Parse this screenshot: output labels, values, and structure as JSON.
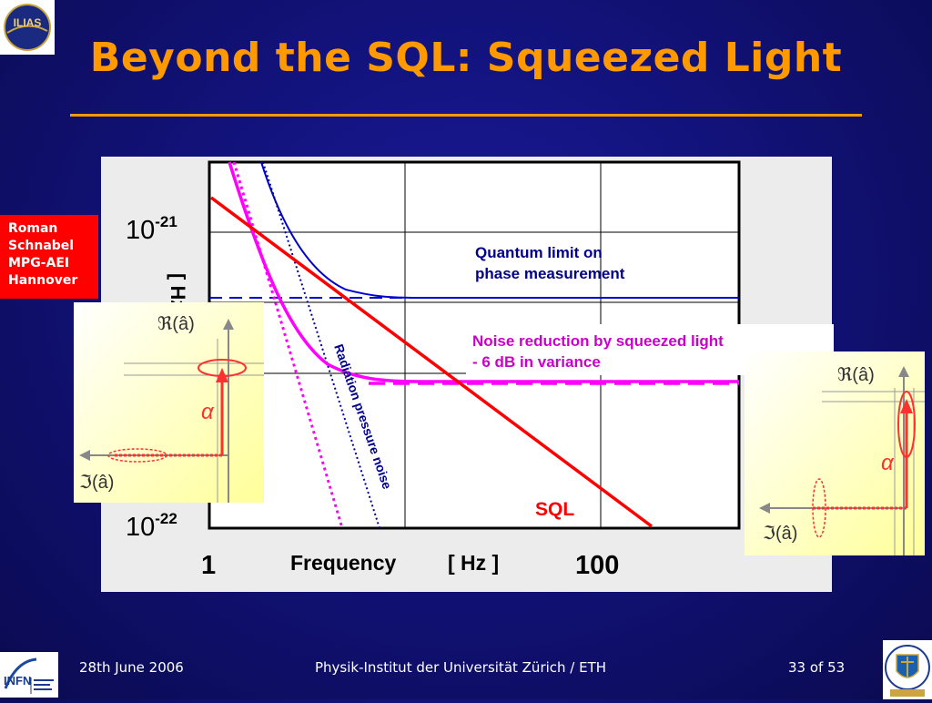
{
  "slide": {
    "title": "Beyond the SQL: Squeezed Light"
  },
  "author": {
    "lines": [
      "Roman",
      "Schnabel",
      "MPG-AEI",
      "Hannover"
    ]
  },
  "chart": {
    "y_top_base": "10",
    "y_top_exp": "-21",
    "y_bottom_base": "10",
    "y_bottom_exp": "-22",
    "y_axis_partial": "[ Hz ]",
    "x_left_tick": "1",
    "x_right_tick": "100",
    "x_label": "Frequency",
    "x_unit": "[ Hz ]",
    "label_quantum_1": "Quantum limit on",
    "label_quantum_2": "phase measurement",
    "label_noise_1": "Noise reduction by squeezed light",
    "label_noise_2": "- 6 dB in variance",
    "label_radiation": "Radiation pressure noise",
    "label_sql": "SQL",
    "colors": {
      "sql": "#ff0000",
      "quantum": "#0000cc",
      "squeezed": "#ff00ff",
      "radiation": "#000099"
    }
  },
  "phasor_left": {
    "real_label": "ℜ(â)",
    "imag_label": "ℑ(â)",
    "alpha": "α"
  },
  "phasor_right": {
    "real_label": "ℜ(â)",
    "imag_label": "ℑ(â)",
    "alpha": "α"
  },
  "footer": {
    "date": "28th June 2006",
    "institute": "Physik-Institut der Universität Zürich / ETH",
    "page": "33 of 53",
    "infn_logo_text": "INFN"
  }
}
